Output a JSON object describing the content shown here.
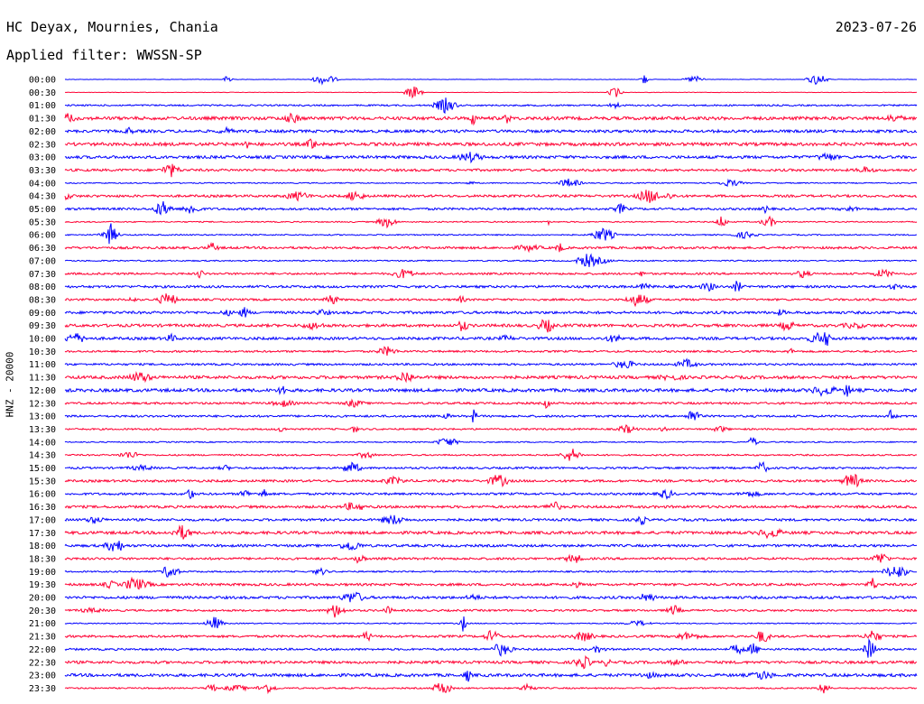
{
  "header": {
    "station": "HC Deyax, Mournies, Chania",
    "date": "2023-07-26",
    "filter": "Applied filter: WWSSN-SP"
  },
  "chart_data": {
    "type": "line",
    "ylabel": "HNZ - 20000",
    "line_colors": [
      "#0000ff",
      "#ff0033"
    ],
    "rows": [
      {
        "time": "00:00",
        "color": "#0000ff"
      },
      {
        "time": "00:30",
        "color": "#ff0033"
      },
      {
        "time": "01:00",
        "color": "#0000ff"
      },
      {
        "time": "01:30",
        "color": "#ff0033"
      },
      {
        "time": "02:00",
        "color": "#0000ff"
      },
      {
        "time": "02:30",
        "color": "#ff0033"
      },
      {
        "time": "03:00",
        "color": "#0000ff"
      },
      {
        "time": "03:30",
        "color": "#ff0033"
      },
      {
        "time": "04:00",
        "color": "#0000ff"
      },
      {
        "time": "04:30",
        "color": "#ff0033"
      },
      {
        "time": "05:00",
        "color": "#0000ff"
      },
      {
        "time": "05:30",
        "color": "#ff0033"
      },
      {
        "time": "06:00",
        "color": "#0000ff"
      },
      {
        "time": "06:30",
        "color": "#ff0033"
      },
      {
        "time": "07:00",
        "color": "#0000ff"
      },
      {
        "time": "07:30",
        "color": "#ff0033"
      },
      {
        "time": "08:00",
        "color": "#0000ff"
      },
      {
        "time": "08:30",
        "color": "#ff0033"
      },
      {
        "time": "09:00",
        "color": "#0000ff"
      },
      {
        "time": "09:30",
        "color": "#ff0033"
      },
      {
        "time": "10:00",
        "color": "#0000ff"
      },
      {
        "time": "10:30",
        "color": "#ff0033"
      },
      {
        "time": "11:00",
        "color": "#0000ff"
      },
      {
        "time": "11:30",
        "color": "#ff0033"
      },
      {
        "time": "12:00",
        "color": "#0000ff"
      },
      {
        "time": "12:30",
        "color": "#ff0033"
      },
      {
        "time": "13:00",
        "color": "#0000ff"
      },
      {
        "time": "13:30",
        "color": "#ff0033"
      },
      {
        "time": "14:00",
        "color": "#0000ff"
      },
      {
        "time": "14:30",
        "color": "#ff0033"
      },
      {
        "time": "15:00",
        "color": "#0000ff"
      },
      {
        "time": "15:30",
        "color": "#ff0033"
      },
      {
        "time": "16:00",
        "color": "#0000ff"
      },
      {
        "time": "16:30",
        "color": "#ff0033"
      },
      {
        "time": "17:00",
        "color": "#0000ff"
      },
      {
        "time": "17:30",
        "color": "#ff0033"
      },
      {
        "time": "18:00",
        "color": "#0000ff"
      },
      {
        "time": "18:30",
        "color": "#ff0033"
      },
      {
        "time": "19:00",
        "color": "#0000ff"
      },
      {
        "time": "19:30",
        "color": "#ff0033"
      },
      {
        "time": "20:00",
        "color": "#0000ff"
      },
      {
        "time": "20:30",
        "color": "#ff0033"
      },
      {
        "time": "21:00",
        "color": "#0000ff"
      },
      {
        "time": "21:30",
        "color": "#ff0033"
      },
      {
        "time": "22:00",
        "color": "#0000ff"
      },
      {
        "time": "22:30",
        "color": "#ff0033"
      },
      {
        "time": "23:00",
        "color": "#0000ff"
      },
      {
        "time": "23:30",
        "color": "#ff0033"
      }
    ]
  }
}
